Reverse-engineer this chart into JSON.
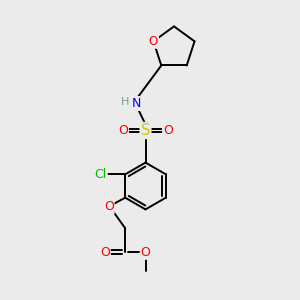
{
  "bg_color": "#ebebeb",
  "bond_color": "#000000",
  "atom_colors": {
    "O": "#ff0000",
    "N": "#0000ff",
    "S": "#cccc00",
    "Cl": "#00bb00",
    "H": "#7a9a9a",
    "C": "#000000"
  },
  "font_size": 8.5,
  "line_width": 1.4,
  "figsize": [
    3.0,
    3.0
  ],
  "dpi": 100
}
